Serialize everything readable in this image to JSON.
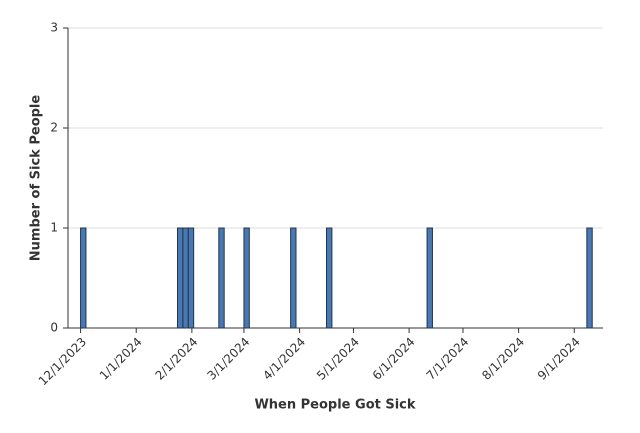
{
  "chart_data": {
    "type": "bar",
    "x_label": "When People Got Sick",
    "y_label": "Number of Sick People",
    "x": [
      "2023-12-01",
      "2024-01-24",
      "2024-01-27",
      "2024-01-30",
      "2024-02-16",
      "2024-03-01",
      "2024-03-27",
      "2024-04-16",
      "2024-06-11",
      "2024-09-08"
    ],
    "values": [
      1,
      1,
      1,
      1,
      1,
      1,
      1,
      1,
      1,
      1
    ],
    "color": "#4a78b0",
    "xlim": [
      "2023-11-24",
      "2024-09-17"
    ],
    "xticks": [
      {
        "value": "2023-12-01",
        "label": "12/1/2023"
      },
      {
        "value": "2024-01-01",
        "label": "1/1/2024"
      },
      {
        "value": "2024-02-01",
        "label": "2/1/2024"
      },
      {
        "value": "2024-03-01",
        "label": "3/1/2024"
      },
      {
        "value": "2024-04-01",
        "label": "4/1/2024"
      },
      {
        "value": "2024-05-01",
        "label": "5/1/2024"
      },
      {
        "value": "2024-06-01",
        "label": "6/1/2024"
      },
      {
        "value": "2024-07-01",
        "label": "7/1/2024"
      },
      {
        "value": "2024-08-01",
        "label": "8/1/2024"
      },
      {
        "value": "2024-09-01",
        "label": "9/1/2024"
      }
    ],
    "ylim": [
      0,
      3
    ],
    "yticks": [
      0,
      1,
      2,
      3
    ],
    "grid": true
  }
}
